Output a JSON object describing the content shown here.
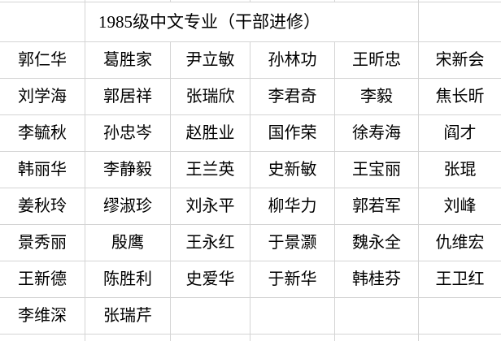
{
  "sheet": {
    "title": "1985级中文专业（干部进修）",
    "rows": [
      [
        "郭仁华",
        "葛胜家",
        "尹立敏",
        "孙林功",
        "王昕忠",
        "宋新会"
      ],
      [
        "刘学海",
        "郭居祥",
        "张瑞欣",
        "李君奇",
        "李毅",
        "焦长昕"
      ],
      [
        "李毓秋",
        "孙忠岑",
        "赵胜业",
        "国作荣",
        "徐寿海",
        "阎才"
      ],
      [
        "韩丽华",
        "李静毅",
        "王兰英",
        "史新敏",
        "王宝丽",
        "张琨"
      ],
      [
        "姜秋玲",
        "缪淑珍",
        "刘永平",
        "柳华力",
        "郭若军",
        "刘峰"
      ],
      [
        "景秀丽",
        "殷鹰",
        "王永红",
        "于景灏",
        "魏永全",
        "仇维宏"
      ],
      [
        "王新德",
        "陈胜利",
        "史爱华",
        "于新华",
        "韩桂芬",
        "王卫红"
      ],
      [
        "李维深",
        "张瑞芹",
        "",
        "",
        "",
        ""
      ]
    ]
  },
  "colors": {
    "gridline": "#d4d4d4",
    "text": "#000000",
    "background": "#ffffff"
  }
}
